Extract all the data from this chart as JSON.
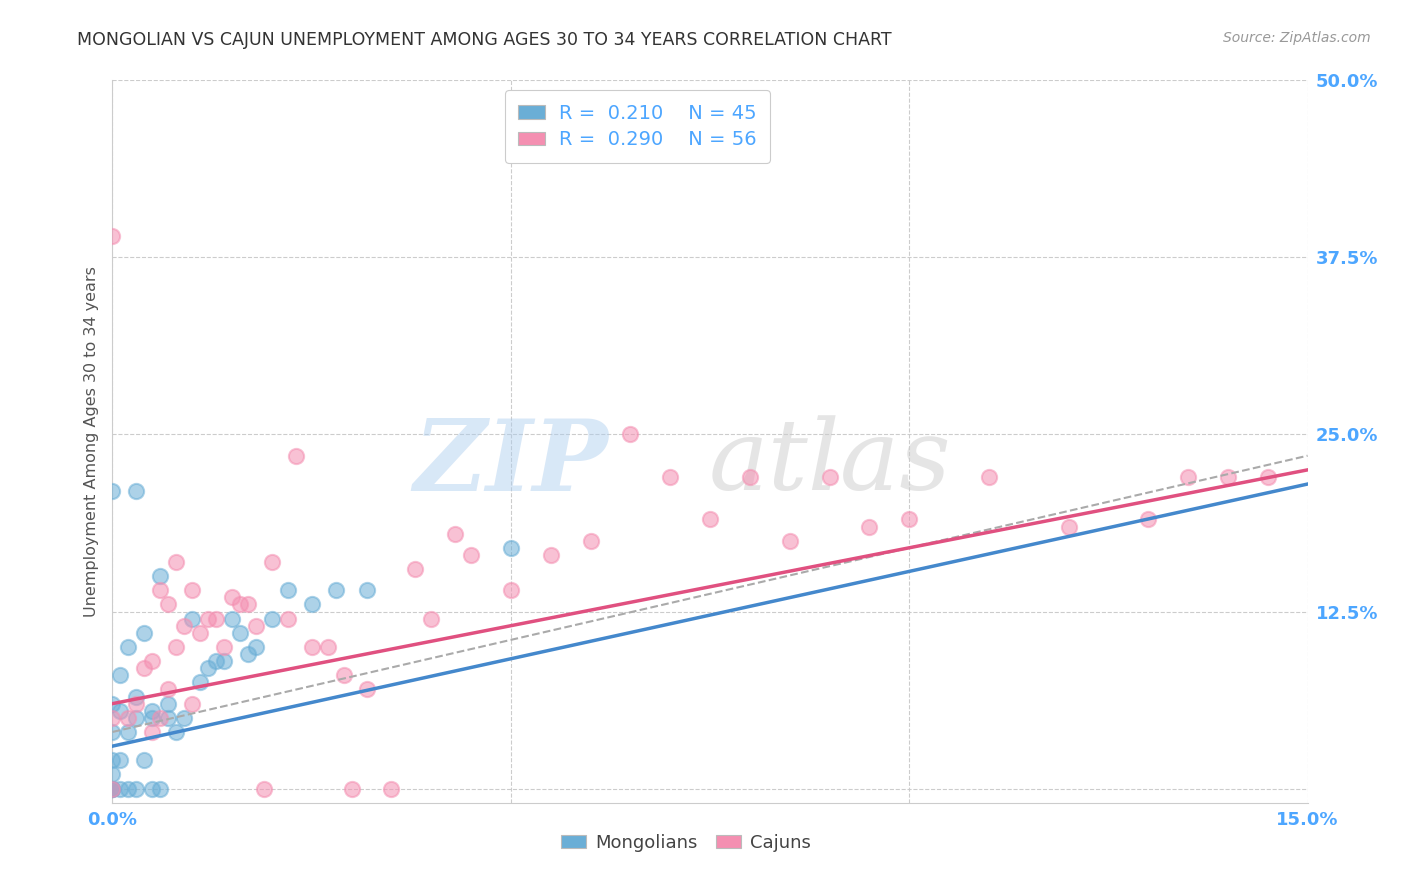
{
  "title": "MONGOLIAN VS CAJUN UNEMPLOYMENT AMONG AGES 30 TO 34 YEARS CORRELATION CHART",
  "source": "Source: ZipAtlas.com",
  "ylabel": "Unemployment Among Ages 30 to 34 years",
  "xlim": [
    0.0,
    0.15
  ],
  "ylim": [
    -0.01,
    0.5
  ],
  "xticks": [
    0.0,
    0.05,
    0.1,
    0.15
  ],
  "yticks": [
    0.0,
    0.125,
    0.25,
    0.375,
    0.5
  ],
  "xticklabels": [
    "0.0%",
    "",
    "",
    "15.0%"
  ],
  "yticklabels": [
    "",
    "12.5%",
    "25.0%",
    "37.5%",
    "50.0%"
  ],
  "mongolian_color": "#6aaed6",
  "cajun_color": "#f48fb1",
  "mongolian_R": 0.21,
  "mongolian_N": 45,
  "cajun_R": 0.29,
  "cajun_N": 56,
  "background_color": "#ffffff",
  "grid_color": "#cccccc",
  "tick_label_color": "#4da6ff",
  "mongolian_x": [
    0.0,
    0.0,
    0.0,
    0.0,
    0.0,
    0.0,
    0.0,
    0.0,
    0.001,
    0.001,
    0.001,
    0.001,
    0.002,
    0.002,
    0.002,
    0.003,
    0.003,
    0.003,
    0.003,
    0.004,
    0.004,
    0.005,
    0.005,
    0.005,
    0.006,
    0.006,
    0.007,
    0.007,
    0.008,
    0.009,
    0.01,
    0.011,
    0.012,
    0.013,
    0.014,
    0.015,
    0.016,
    0.017,
    0.018,
    0.02,
    0.022,
    0.025,
    0.028,
    0.032,
    0.05
  ],
  "mongolian_y": [
    0.0,
    0.0,
    0.0,
    0.01,
    0.02,
    0.04,
    0.06,
    0.21,
    0.0,
    0.02,
    0.055,
    0.08,
    0.0,
    0.04,
    0.1,
    0.0,
    0.05,
    0.065,
    0.21,
    0.02,
    0.11,
    0.0,
    0.05,
    0.055,
    0.0,
    0.15,
    0.05,
    0.06,
    0.04,
    0.05,
    0.12,
    0.075,
    0.085,
    0.09,
    0.09,
    0.12,
    0.11,
    0.095,
    0.1,
    0.12,
    0.14,
    0.13,
    0.14,
    0.14,
    0.17
  ],
  "cajun_x": [
    0.0,
    0.0,
    0.0,
    0.002,
    0.003,
    0.004,
    0.005,
    0.005,
    0.006,
    0.006,
    0.007,
    0.007,
    0.008,
    0.008,
    0.009,
    0.01,
    0.01,
    0.011,
    0.012,
    0.013,
    0.014,
    0.015,
    0.016,
    0.017,
    0.018,
    0.019,
    0.02,
    0.022,
    0.023,
    0.025,
    0.027,
    0.029,
    0.03,
    0.032,
    0.035,
    0.038,
    0.04,
    0.043,
    0.045,
    0.05,
    0.055,
    0.06,
    0.065,
    0.07,
    0.075,
    0.08,
    0.085,
    0.09,
    0.095,
    0.1,
    0.11,
    0.12,
    0.13,
    0.135,
    0.14,
    0.145
  ],
  "cajun_y": [
    0.0,
    0.05,
    0.39,
    0.05,
    0.06,
    0.085,
    0.04,
    0.09,
    0.05,
    0.14,
    0.07,
    0.13,
    0.1,
    0.16,
    0.115,
    0.06,
    0.14,
    0.11,
    0.12,
    0.12,
    0.1,
    0.135,
    0.13,
    0.13,
    0.115,
    0.0,
    0.16,
    0.12,
    0.235,
    0.1,
    0.1,
    0.08,
    0.0,
    0.07,
    0.0,
    0.155,
    0.12,
    0.18,
    0.165,
    0.14,
    0.165,
    0.175,
    0.25,
    0.22,
    0.19,
    0.22,
    0.175,
    0.22,
    0.185,
    0.19,
    0.22,
    0.185,
    0.19,
    0.22,
    0.22,
    0.22
  ],
  "mongolian_trend_x": [
    0.0,
    0.15
  ],
  "mongolian_trend_y": [
    0.03,
    0.215
  ],
  "cajun_trend_x": [
    0.0,
    0.15
  ],
  "cajun_trend_y": [
    0.06,
    0.225
  ],
  "legend_mongolians": "Mongolians",
  "legend_cajuns": "Cajuns"
}
